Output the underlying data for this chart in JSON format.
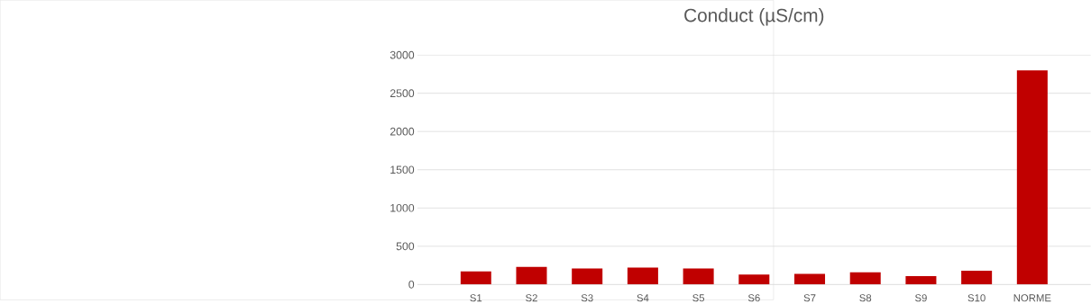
{
  "chart_data": {
    "type": "bar",
    "title": "Conduct (µS/cm)",
    "categories": [
      "S1",
      "S2",
      "S3",
      "S4",
      "S5",
      "S6",
      "S7",
      "S8",
      "S9",
      "S10",
      "NORME"
    ],
    "values": [
      170,
      230,
      210,
      220,
      210,
      130,
      140,
      160,
      110,
      180,
      2800
    ],
    "color": "#c00000",
    "ylim": [
      0,
      3000
    ],
    "yticks": [
      0,
      500,
      1000,
      1500,
      2000,
      2500,
      3000
    ],
    "grid": "y"
  }
}
